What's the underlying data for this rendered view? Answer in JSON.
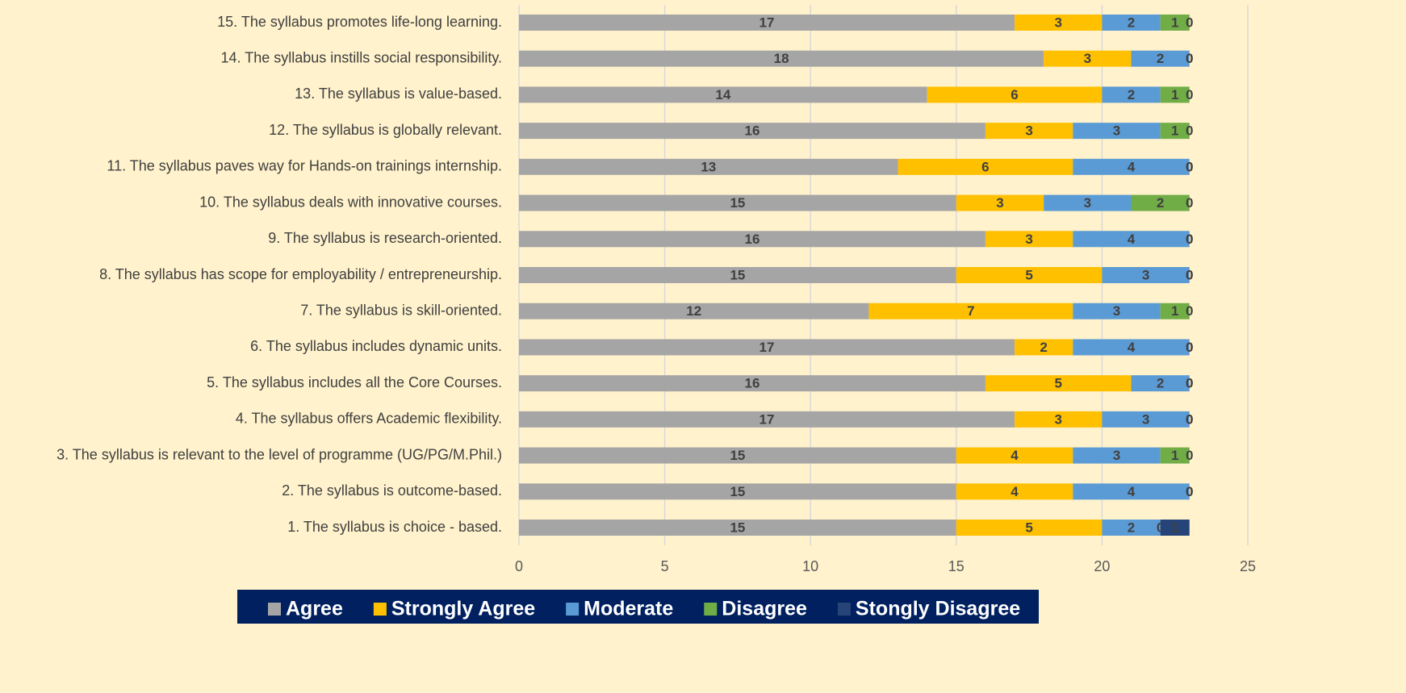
{
  "chart_data": {
    "type": "stacked-bar-horizontal",
    "categories": [
      "1. The syllabus is choice - based.",
      "2. The syllabus is outcome-based.",
      "3. The syllabus is relevant to the level of programme (UG/PG/M.Phil.)",
      "4. The syllabus offers Academic flexibility.",
      "5. The syllabus includes all the Core Courses.",
      "6. The syllabus includes dynamic units.",
      "7. The syllabus is skill-oriented.",
      "8. The syllabus has scope for employability / entrepreneurship.",
      "9. The syllabus is research-oriented.",
      "10. The syllabus deals with innovative courses.",
      "11. The syllabus paves way for Hands-on trainings internship.",
      "12. The syllabus is globally relevant.",
      "13. The syllabus is value-based.",
      "14. The syllabus instills social responsibility.",
      "15. The syllabus promotes life-long learning."
    ],
    "series": [
      {
        "name": "Agree",
        "color": "#a5a5a5",
        "values": [
          15,
          15,
          15,
          17,
          16,
          17,
          12,
          15,
          16,
          15,
          13,
          16,
          14,
          18,
          17
        ]
      },
      {
        "name": "Strongly Agree",
        "color": "#ffc000",
        "values": [
          5,
          4,
          4,
          3,
          5,
          2,
          7,
          5,
          3,
          3,
          6,
          3,
          6,
          3,
          3
        ]
      },
      {
        "name": "Moderate",
        "color": "#5b9bd5",
        "values": [
          2,
          4,
          3,
          3,
          2,
          4,
          3,
          3,
          4,
          3,
          4,
          3,
          2,
          2,
          2
        ]
      },
      {
        "name": "Disagree",
        "color": "#70ad47",
        "values": [
          0,
          0,
          1,
          0,
          0,
          0,
          1,
          0,
          0,
          2,
          0,
          1,
          1,
          0,
          1
        ]
      },
      {
        "name": "Stongly Disagree",
        "color": "#264478",
        "values": [
          1,
          0,
          0,
          0,
          0,
          0,
          0,
          0,
          0,
          0,
          0,
          0,
          0,
          0,
          0
        ]
      }
    ],
    "xlim": [
      0,
      25
    ],
    "xticks": [
      0,
      5,
      10,
      15,
      20,
      25
    ],
    "grid": true,
    "legend": "bottom",
    "legend_background": "#002060"
  }
}
